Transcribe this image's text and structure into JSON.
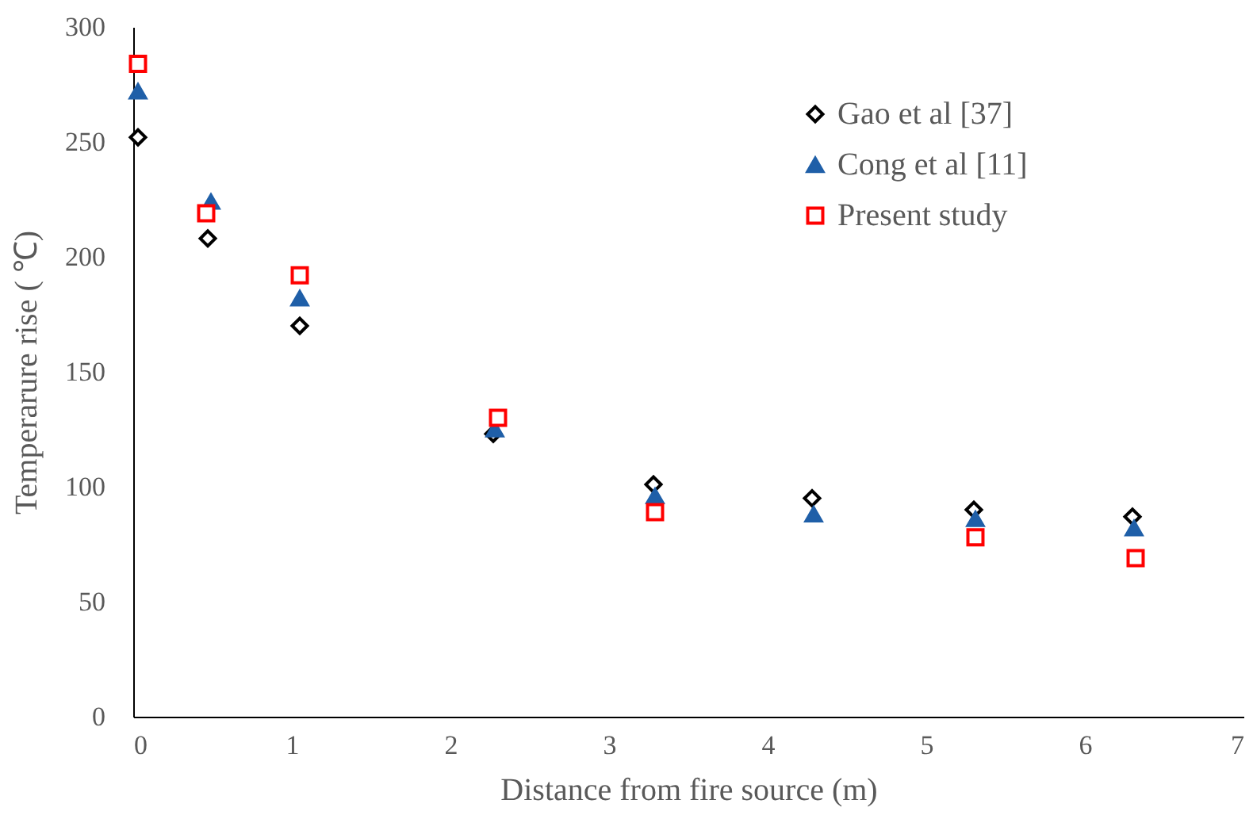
{
  "chart_data": {
    "type": "scatter",
    "xlabel": "Distance from fire source (m)",
    "ylabel": "Temperarure rise ( ℃)",
    "xlim": [
      0,
      7
    ],
    "xticks": [
      0,
      1,
      2,
      3,
      4,
      5,
      6,
      7
    ],
    "ylim": [
      0,
      300
    ],
    "yticks": [
      0,
      50,
      100,
      150,
      200,
      250,
      300
    ],
    "grid": false,
    "legend": "top right",
    "series": [
      {
        "name": "Gao et al [37]",
        "color": "#000000",
        "marker": "diamond",
        "x": [
          0.03,
          0.47,
          1.05,
          2.27,
          3.28,
          4.28,
          5.3,
          6.3
        ],
        "values": [
          252,
          208,
          170,
          123,
          101,
          95,
          90,
          87
        ]
      },
      {
        "name": "Cong et al [11]",
        "color": "#1f5fa8",
        "marker": "triangle",
        "x": [
          0.03,
          0.49,
          1.05,
          2.28,
          3.29,
          4.29,
          5.31,
          6.31
        ],
        "values": [
          272,
          224,
          182,
          125,
          96,
          88,
          86,
          82
        ]
      },
      {
        "name": "Present study",
        "color": "#ff0000",
        "marker": "square",
        "x": [
          0.03,
          0.46,
          1.05,
          2.3,
          3.29,
          5.31,
          6.32
        ],
        "values": [
          284,
          219,
          192,
          130,
          89,
          78,
          69
        ]
      }
    ]
  }
}
